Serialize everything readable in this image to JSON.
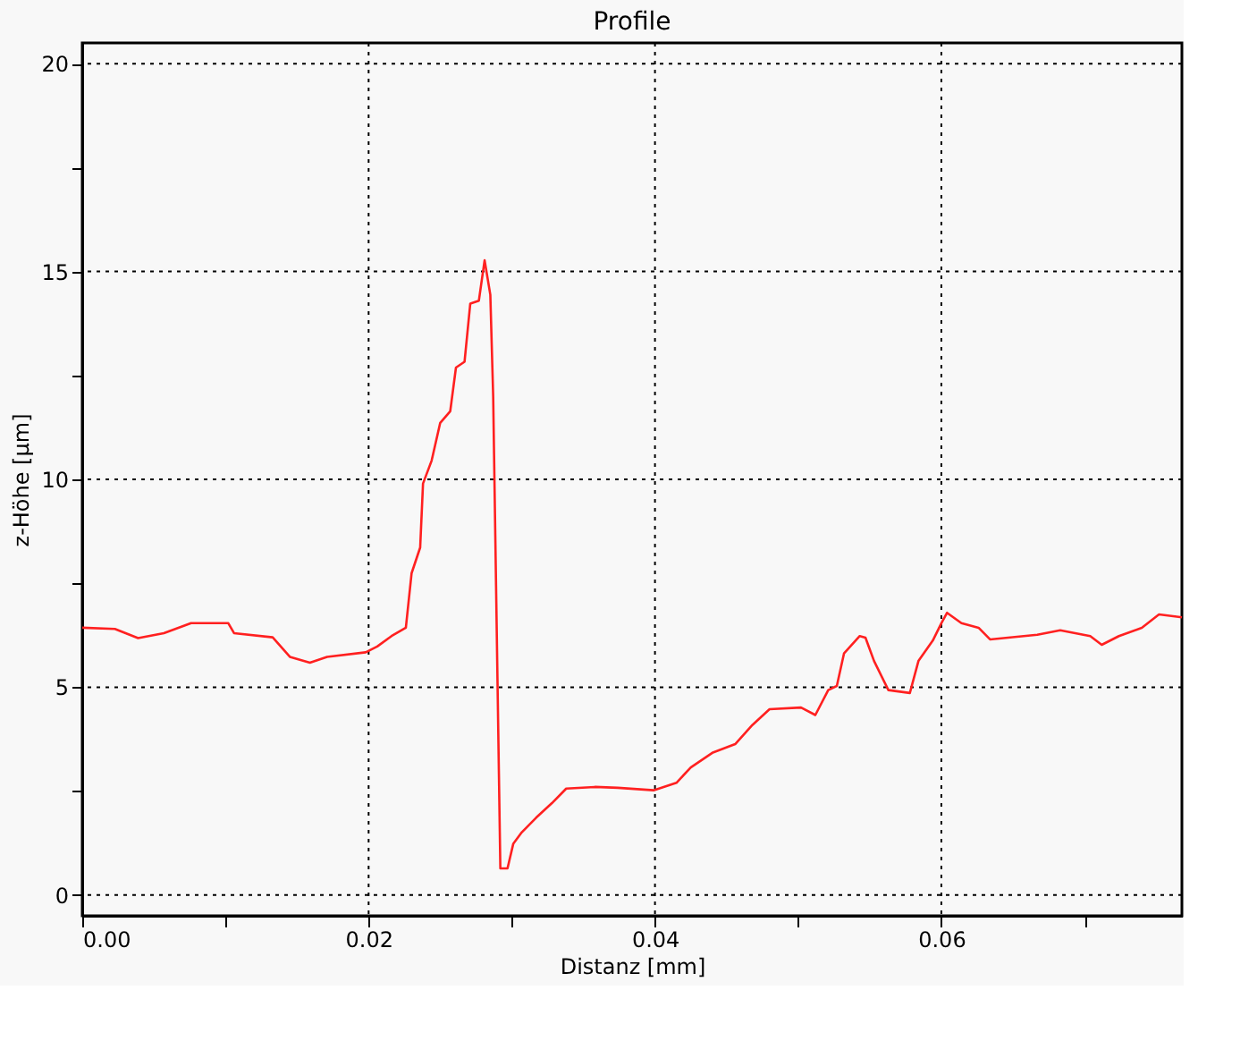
{
  "chart_data": {
    "type": "line",
    "title": "Profile",
    "xlabel": "Distanz [mm]",
    "ylabel": "z-Höhe [µm]",
    "x": [
      0,
      0.00228,
      0.0039,
      0.0057,
      0.0076,
      0.0102,
      0.0106,
      0.0133,
      0.0145,
      0.0159,
      0.0171,
      0.0198,
      0.0206,
      0.0216,
      0.0226,
      0.023,
      0.0236,
      0.0238,
      0.0244,
      0.025,
      0.0257,
      0.0261,
      0.0267,
      0.0271,
      0.0277,
      0.0281,
      0.0285,
      0.0287,
      0.0289,
      0.0291,
      0.0292,
      0.0297,
      0.0301,
      0.0307,
      0.0317,
      0.0328,
      0.0338,
      0.0358,
      0.0374,
      0.0399,
      0.0415,
      0.0425,
      0.044,
      0.0456,
      0.0468,
      0.048,
      0.0502,
      0.0512,
      0.0521,
      0.0527,
      0.0532,
      0.0543,
      0.0547,
      0.0553,
      0.0563,
      0.0578,
      0.0584,
      0.0594,
      0.06,
      0.0604,
      0.0614,
      0.0626,
      0.0634,
      0.0667,
      0.0683,
      0.0704,
      0.0712,
      0.0724,
      0.074,
      0.0752,
      0.0768
    ],
    "series": [
      {
        "color": "#ff2020",
        "values": [
          6.43,
          6.4,
          6.18,
          6.3,
          6.54,
          6.54,
          6.3,
          6.2,
          5.73,
          5.59,
          5.73,
          5.84,
          5.98,
          6.23,
          6.43,
          7.74,
          8.36,
          9.9,
          10.45,
          11.36,
          11.64,
          12.69,
          12.83,
          14.23,
          14.3,
          15.27,
          14.44,
          11.99,
          7.45,
          2.91,
          0.64,
          0.64,
          1.23,
          1.51,
          1.86,
          2.21,
          2.56,
          2.6,
          2.58,
          2.52,
          2.7,
          3.07,
          3.42,
          3.63,
          4.09,
          4.47,
          4.51,
          4.33,
          4.93,
          5.03,
          5.81,
          6.23,
          6.19,
          5.63,
          4.93,
          4.86,
          5.63,
          6.12,
          6.54,
          6.79,
          6.54,
          6.43,
          6.15,
          6.26,
          6.37,
          6.23,
          6.02,
          6.23,
          6.43,
          6.75,
          6.68
        ]
      }
    ],
    "xlim": [
      0,
      0.0768
    ],
    "ylim": [
      -0.5,
      20.5
    ],
    "xticks": [
      {
        "value": 0,
        "label": "0.00"
      },
      {
        "value": 0.01,
        "label": null
      },
      {
        "value": 0.02,
        "label": "0.02"
      },
      {
        "value": 0.03,
        "label": null
      },
      {
        "value": 0.04,
        "label": "0.04"
      },
      {
        "value": 0.05,
        "label": null
      },
      {
        "value": 0.06,
        "label": "0.06"
      },
      {
        "value": 0.07,
        "label": null
      }
    ],
    "yticks": [
      0,
      {
        "value": 2.5,
        "label": null
      },
      5,
      {
        "value": 7.5,
        "label": null
      },
      10,
      {
        "value": 12.5,
        "label": null
      },
      15,
      {
        "value": 17.5,
        "label": null
      },
      20
    ],
    "grid": true,
    "marker": "none",
    "line_style": "solid"
  }
}
